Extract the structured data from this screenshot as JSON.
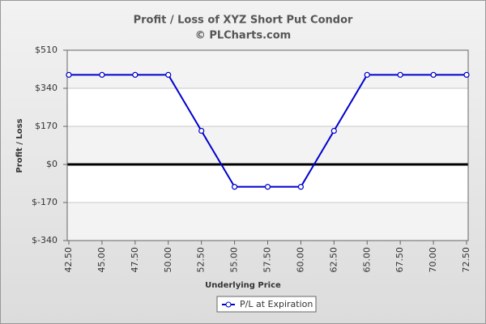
{
  "chart_data": {
    "type": "line",
    "title": "Profit / Loss of XYZ Short Put Condor",
    "subtitle": "© PLCharts.com",
    "x_label": "Underlying Price",
    "y_label": "Profit / Loss",
    "categories": [
      "42.50",
      "45.00",
      "47.50",
      "50.00",
      "52.50",
      "55.00",
      "57.50",
      "60.00",
      "62.50",
      "65.00",
      "67.50",
      "70.00",
      "72.50"
    ],
    "series": [
      {
        "name": "P/L at Expiration",
        "color": "#0000cc",
        "values": [
          400,
          400,
          400,
          400,
          150,
          -100,
          -100,
          -100,
          150,
          400,
          400,
          400,
          400
        ]
      }
    ],
    "ylim": [
      -340,
      510
    ],
    "yticks": [
      {
        "value": -340,
        "label": "$-340"
      },
      {
        "value": -170,
        "label": "$-170"
      },
      {
        "value": 0,
        "label": "$0"
      },
      {
        "value": 170,
        "label": "$170"
      },
      {
        "value": 340,
        "label": "$340"
      },
      {
        "value": 510,
        "label": "$510"
      }
    ],
    "grid": true
  }
}
